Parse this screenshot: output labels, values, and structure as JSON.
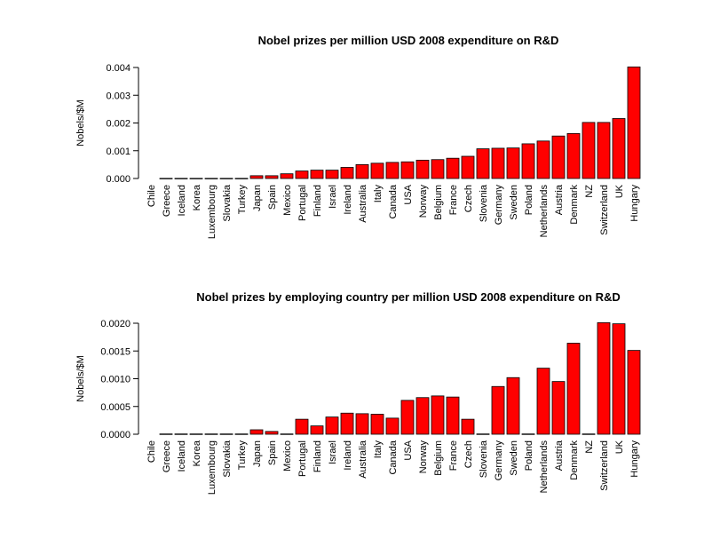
{
  "chart_data": [
    {
      "type": "bar",
      "title": "Nobel prizes per million USD 2008 expenditure on R&D",
      "xlabel": "",
      "ylabel": "Nobels/$M",
      "ylim": [
        0,
        0.004
      ],
      "yticks": [
        "0.000",
        "0.001",
        "0.002",
        "0.003",
        "0.004"
      ],
      "categories": [
        "Chile",
        "Greece",
        "Iceland",
        "Korea",
        "Luxembourg",
        "Slovakia",
        "Turkey",
        "Japan",
        "Spain",
        "Mexico",
        "Portugal",
        "Finland",
        "Israel",
        "Ireland",
        "Australia",
        "Italy",
        "Canada",
        "USA",
        "Norway",
        "Belgium",
        "France",
        "Czech",
        "Slovenia",
        "Germany",
        "Sweden",
        "Poland",
        "Netherlands",
        "Austria",
        "Denmark",
        "NZ",
        "Switzerland",
        "UK",
        "Hungary"
      ],
      "values": [
        0,
        5e-06,
        5e-06,
        5e-06,
        5e-06,
        5e-06,
        5e-06,
        0.0001,
        0.0001,
        0.00017,
        0.00027,
        0.0003,
        0.0003,
        0.0004,
        0.0005,
        0.00055,
        0.00058,
        0.0006,
        0.00066,
        0.00068,
        0.00073,
        0.0008,
        0.00107,
        0.00109,
        0.0011,
        0.00125,
        0.00135,
        0.00153,
        0.00162,
        0.00202,
        0.00202,
        0.00216,
        0.00402
      ],
      "bar_color": "#ff0000",
      "grid": false
    },
    {
      "type": "bar",
      "title": "Nobel prizes by employing country per million USD 2008 expenditure on R&D",
      "xlabel": "",
      "ylabel": "Nobels/$M",
      "ylim": [
        0,
        0.002
      ],
      "yticks": [
        "0.0000",
        "0.0005",
        "0.0010",
        "0.0015",
        "0.0020"
      ],
      "categories": [
        "Chile",
        "Greece",
        "Iceland",
        "Korea",
        "Luxembourg",
        "Slovakia",
        "Turkey",
        "Japan",
        "Spain",
        "Mexico",
        "Portugal",
        "Finland",
        "Israel",
        "Ireland",
        "Australia",
        "Italy",
        "Canada",
        "USA",
        "Norway",
        "Belgium",
        "France",
        "Czech",
        "Slovenia",
        "Germany",
        "Sweden",
        "Poland",
        "Netherlands",
        "Austria",
        "Denmark",
        "NZ",
        "Switzerland",
        "UK",
        "Hungary"
      ],
      "values": [
        0,
        5e-06,
        5e-06,
        5e-06,
        5e-06,
        5e-06,
        5e-06,
        8e-05,
        5e-05,
        5e-06,
        0.00027,
        0.00015,
        0.00031,
        0.00038,
        0.00037,
        0.00036,
        0.00029,
        0.00061,
        0.00066,
        0.00069,
        0.00067,
        0.00027,
        5e-06,
        0.00086,
        0.00102,
        5e-06,
        0.00119,
        0.00095,
        0.00164,
        5e-06,
        0.00201,
        0.00199,
        0.00151
      ],
      "bar_color": "#ff0000",
      "grid": false
    }
  ]
}
